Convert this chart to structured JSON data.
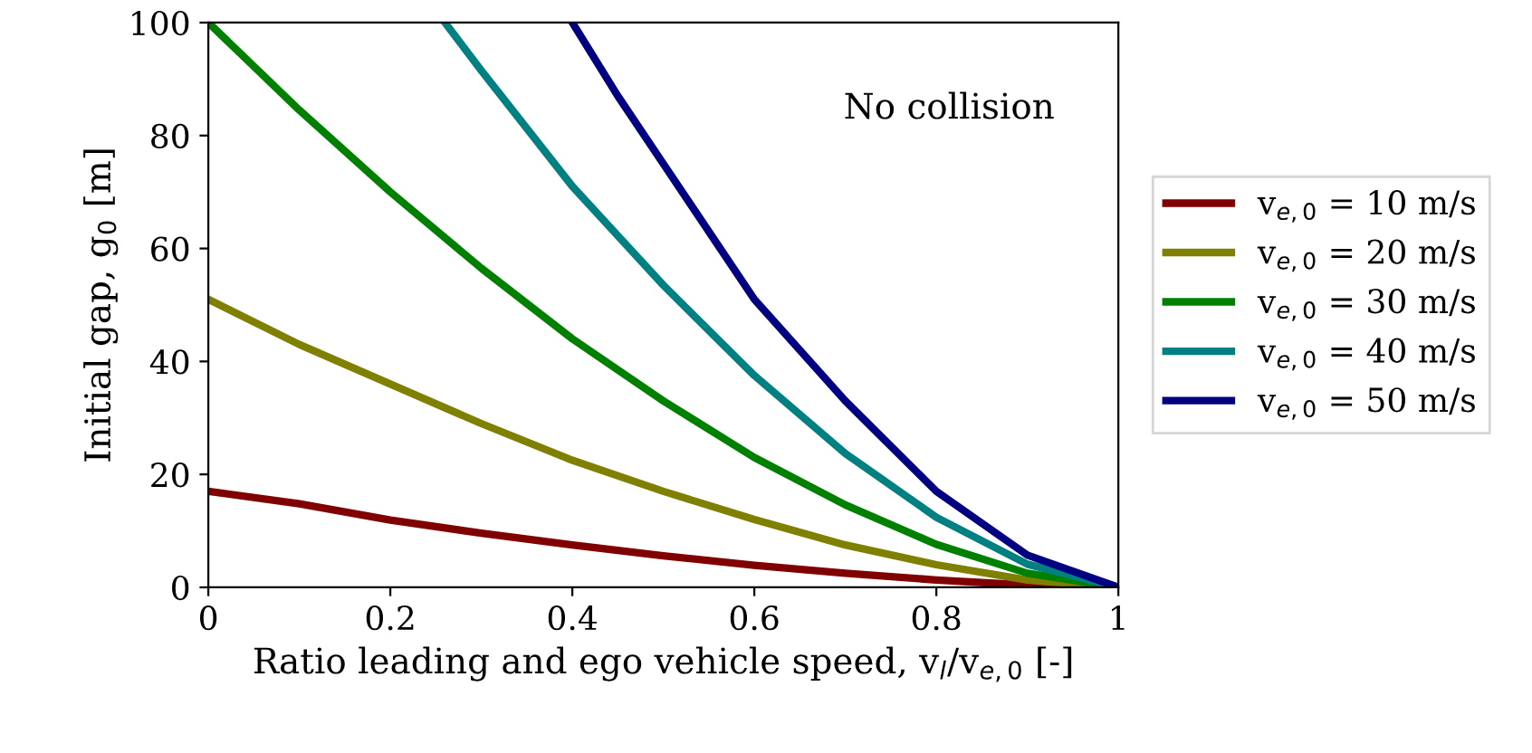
{
  "chart_data": {
    "type": "line",
    "xlabel": "Ratio leading and ego vehicle speed, v$_{l}$/v$_{e,0}$ [-]",
    "ylabel": "Initial gap, g$_{0}$ [m]",
    "annotations": [
      "No collision"
    ],
    "xlim": [
      0,
      1
    ],
    "ylim": [
      0,
      100
    ],
    "xticks": [
      0,
      0.2,
      0.4,
      0.6,
      0.8,
      1
    ],
    "yticks": [
      0,
      20,
      40,
      60,
      80,
      100
    ],
    "grid": false,
    "legend": "right",
    "line_style": "solid",
    "marker": "none",
    "series": [
      {
        "name": "v$_{e,0}$ = 10 m/s",
        "color": "#800000",
        "x": [
          0,
          0.1,
          0.2,
          0.3,
          0.4,
          0.5,
          0.6,
          0.7,
          0.8,
          0.9,
          1
        ],
        "values": [
          17,
          14.8,
          11.9,
          9.6,
          7.5,
          5.6,
          3.9,
          2.5,
          1.3,
          0.4,
          0
        ]
      },
      {
        "name": "v$_{e,0}$ = 20 m/s",
        "color": "#808000",
        "x": [
          0,
          0.1,
          0.2,
          0.3,
          0.4,
          0.5,
          0.6,
          0.7,
          0.8,
          0.9,
          1
        ],
        "values": [
          51,
          43,
          36,
          29,
          22.5,
          17,
          12,
          7.5,
          4,
          1.3,
          0
        ]
      },
      {
        "name": "v$_{e,0}$ = 30 m/s",
        "color": "#008000",
        "x": [
          0,
          0.1,
          0.2,
          0.3,
          0.4,
          0.5,
          0.6,
          0.7,
          0.8,
          0.9,
          1
        ],
        "values": [
          100,
          84.5,
          70,
          56.5,
          44,
          33,
          23,
          14.6,
          7.6,
          2.5,
          0
        ]
      },
      {
        "name": "v$_{e,0}$ = 40 m/s",
        "color": "#008080",
        "x": [
          0.26,
          0.3,
          0.4,
          0.5,
          0.6,
          0.7,
          0.8,
          0.9,
          1
        ],
        "values": [
          100,
          91.5,
          71,
          53.5,
          37.5,
          23.7,
          12.4,
          4.1,
          0
        ]
      },
      {
        "name": "v$_{e,0}$ = 50 m/s",
        "color": "#000080",
        "x": [
          0.4,
          0.45,
          0.5,
          0.55,
          0.6,
          0.7,
          0.8,
          0.9,
          1
        ],
        "values": [
          100,
          87,
          75,
          63,
          51,
          33,
          17,
          5.7,
          0
        ]
      }
    ]
  }
}
